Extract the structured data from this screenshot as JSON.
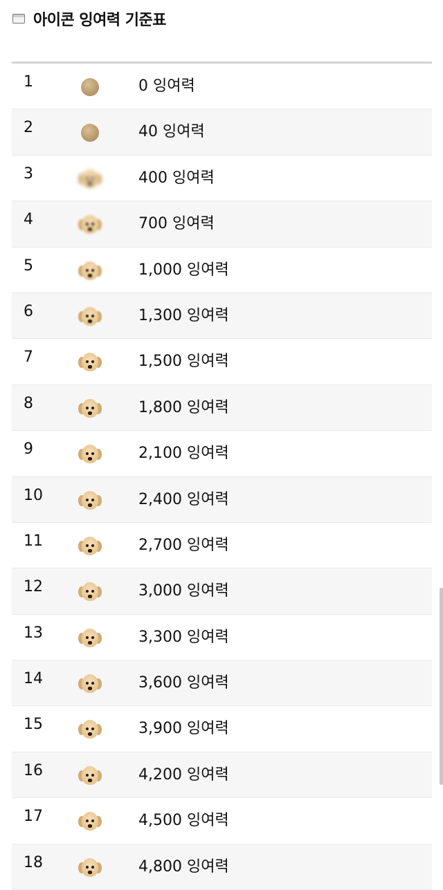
{
  "header": {
    "title": "아이콘 잉여력 기준표",
    "icon": "window-icon"
  },
  "rows": [
    {
      "level": "1",
      "value": "0 잉여력",
      "icon": "ball",
      "blur": 0
    },
    {
      "level": "2",
      "value": "40 잉여력",
      "icon": "ball",
      "blur": 0
    },
    {
      "level": "3",
      "value": "400 잉여력",
      "icon": "puppy-face",
      "blur": 3
    },
    {
      "level": "4",
      "value": "700 잉여력",
      "icon": "puppy-face",
      "blur": 1.6
    },
    {
      "level": "5",
      "value": "1,000 잉여력",
      "icon": "puppy-face",
      "blur": 1
    },
    {
      "level": "6",
      "value": "1,300 잉여력",
      "icon": "puppy-face",
      "blur": 0.7
    },
    {
      "level": "7",
      "value": "1,500 잉여력",
      "icon": "puppy-face",
      "blur": 0
    },
    {
      "level": "8",
      "value": "1,800 잉여력",
      "icon": "puppy-face",
      "blur": 0
    },
    {
      "level": "9",
      "value": "2,100 잉여력",
      "icon": "puppy-face",
      "blur": 0
    },
    {
      "level": "10",
      "value": "2,400 잉여력",
      "icon": "puppy-face",
      "blur": 0
    },
    {
      "level": "11",
      "value": "2,700 잉여력",
      "icon": "puppy-face",
      "blur": 0
    },
    {
      "level": "12",
      "value": "3,000 잉여력",
      "icon": "puppy-face",
      "blur": 0
    },
    {
      "level": "13",
      "value": "3,300 잉여력",
      "icon": "puppy-face",
      "blur": 0
    },
    {
      "level": "14",
      "value": "3,600 잉여력",
      "icon": "puppy-face",
      "blur": 0
    },
    {
      "level": "15",
      "value": "3,900 잉여력",
      "icon": "puppy-face",
      "blur": 0
    },
    {
      "level": "16",
      "value": "4,200 잉여력",
      "icon": "puppy-face",
      "blur": 0
    },
    {
      "level": "17",
      "value": "4,500 잉여력",
      "icon": "puppy-face",
      "blur": 0
    },
    {
      "level": "18",
      "value": "4,800 잉여력",
      "icon": "puppy-face",
      "blur": 0
    }
  ]
}
